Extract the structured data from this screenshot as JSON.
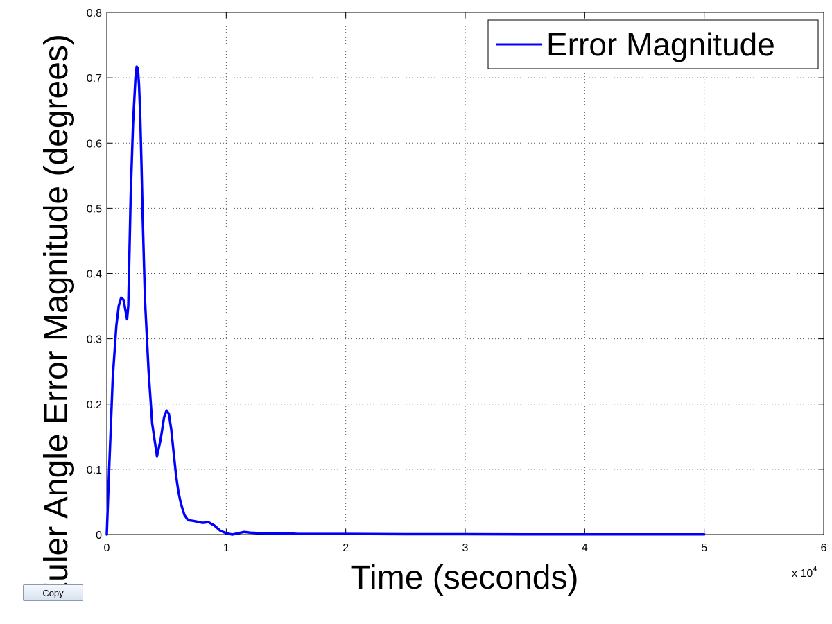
{
  "chart_data": {
    "type": "line",
    "xlabel": "Time (seconds)",
    "ylabel": "Euler Angle Error Magnitude (degrees)",
    "x_exponent_base": "x 10",
    "x_exponent_power": "4",
    "xlim": [
      0,
      6
    ],
    "ylim": [
      0,
      0.8
    ],
    "xticks": [
      "0",
      "1",
      "2",
      "3",
      "4",
      "5",
      "6"
    ],
    "yticks": [
      "0",
      "0.1",
      "0.2",
      "0.3",
      "0.4",
      "0.5",
      "0.6",
      "0.7",
      "0.8"
    ],
    "grid": true,
    "legend_position": "top-right",
    "series": [
      {
        "name": "Error Magnitude",
        "color": "#0000ff",
        "x": [
          0,
          0.02,
          0.05,
          0.08,
          0.1,
          0.12,
          0.14,
          0.16,
          0.17,
          0.18,
          0.19,
          0.2,
          0.22,
          0.24,
          0.25,
          0.26,
          0.27,
          0.28,
          0.29,
          0.3,
          0.32,
          0.35,
          0.38,
          0.42,
          0.45,
          0.48,
          0.5,
          0.52,
          0.54,
          0.56,
          0.58,
          0.6,
          0.62,
          0.65,
          0.68,
          0.72,
          0.75,
          0.8,
          0.85,
          0.9,
          0.95,
          1.0,
          1.05,
          1.1,
          1.15,
          1.2,
          1.3,
          1.4,
          1.5,
          1.6,
          1.7,
          1.8,
          2.0,
          2.5,
          3.0,
          3.5,
          4.0,
          4.5,
          5.0
        ],
        "y": [
          0.0,
          0.1,
          0.24,
          0.32,
          0.35,
          0.363,
          0.36,
          0.34,
          0.33,
          0.35,
          0.43,
          0.52,
          0.63,
          0.7,
          0.717,
          0.715,
          0.69,
          0.64,
          0.57,
          0.49,
          0.36,
          0.25,
          0.17,
          0.12,
          0.145,
          0.18,
          0.19,
          0.185,
          0.16,
          0.125,
          0.09,
          0.065,
          0.048,
          0.03,
          0.022,
          0.021,
          0.02,
          0.018,
          0.019,
          0.014,
          0.006,
          0.002,
          0.0,
          0.002,
          0.004,
          0.003,
          0.002,
          0.002,
          0.002,
          0.001,
          0.001,
          0.001,
          0.001,
          0.0005,
          0.0005,
          0.0003,
          0.0003,
          0.0002,
          0.0002
        ]
      }
    ]
  },
  "toolbar": {
    "copy_label": "Copy"
  }
}
